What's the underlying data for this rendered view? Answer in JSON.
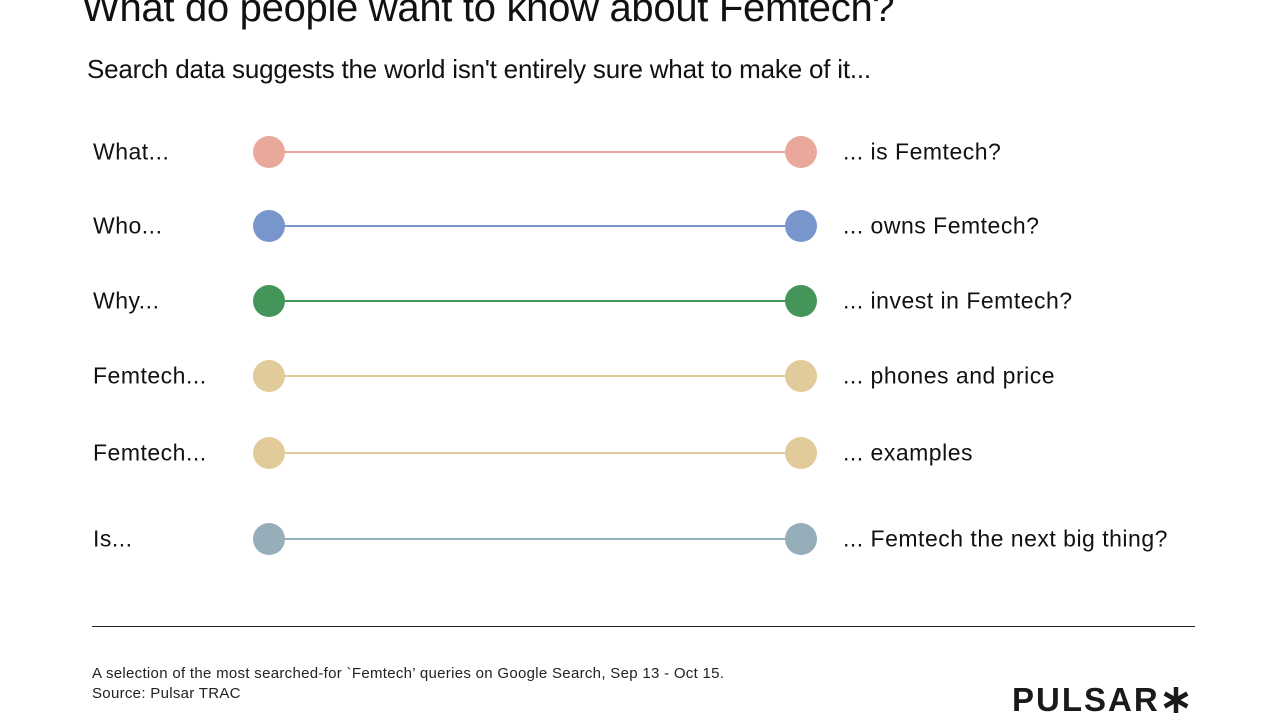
{
  "title": "What do people want to know about Femtech?",
  "subtitle": "Search data suggests the world isn't entirely sure what to make of it...",
  "queries": [
    {
      "prefix": "What...",
      "suffix": "... is Femtech?",
      "color": "#E8A89A"
    },
    {
      "prefix": "Who...",
      "suffix": "... owns Femtech?",
      "color": "#7896CB"
    },
    {
      "prefix": "Why...",
      "suffix": "... invest in Femtech?",
      "color": "#44955A"
    },
    {
      "prefix": "Femtech...",
      "suffix": "... phones and price",
      "color": "#E2CB9A"
    },
    {
      "prefix": "Femtech...",
      "suffix": "... examples",
      "color": "#E2CB9A"
    },
    {
      "prefix": "Is...",
      "suffix": "... Femtech the next big thing?",
      "color": "#96ADBA"
    }
  ],
  "footnote": {
    "line1": "A selection of the most searched-for `Femtech’ queries on Google Search, Sep 13 - Oct 15.",
    "line2": "Source: Pulsar TRAC"
  },
  "logo": {
    "text": "PULSAR",
    "icon": "asterisk-icon"
  }
}
